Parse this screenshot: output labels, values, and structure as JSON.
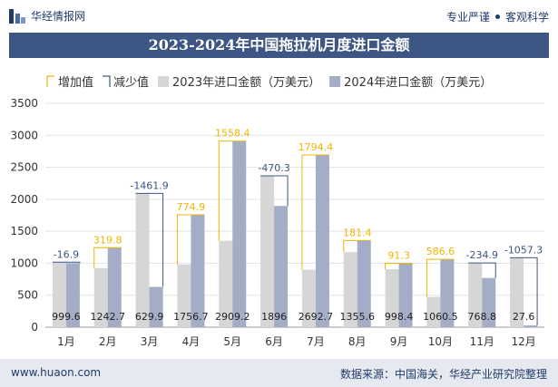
{
  "header": {
    "brand": "华经情报网",
    "slogan_left": "专业严谨",
    "slogan_right": "客观科学"
  },
  "footer": {
    "url": "www.huaon.com",
    "source": "数据来源：中国海关，华经产业研究院整理"
  },
  "chart_data": {
    "type": "bar",
    "title": "2023-2024年中国拖拉机月度进口金额",
    "legend": [
      "增加值",
      "减少值",
      "2023年进口金额（万美元）",
      "2024年进口金额（万美元）"
    ],
    "legend_position": "top",
    "categories": [
      "1月",
      "2月",
      "3月",
      "4月",
      "5月",
      "6月",
      "7月",
      "8月",
      "9月",
      "10月",
      "11月",
      "12月"
    ],
    "series": [
      {
        "name": "2023年进口金额（万美元）",
        "values": [
          1016.5,
          922.9,
          2091.8,
          981.8,
          1350.8,
          2366.3,
          898.3,
          1174.2,
          907.1,
          473.9,
          1003.7,
          1084.9
        ]
      },
      {
        "name": "2024年进口金额（万美元）",
        "values": [
          999.6,
          1242.7,
          629.9,
          1756.7,
          2909.2,
          1896,
          2692.7,
          1355.6,
          998.4,
          1060.5,
          768.8,
          27.6
        ]
      }
    ],
    "change": [
      "-16.9",
      "319.8",
      "-1461.9",
      "774.9",
      "1558.4",
      "-470.3",
      "1794.4",
      "181.4",
      "91.3",
      "586.6",
      "-234.9",
      "-1057.3"
    ],
    "ylim": [
      0,
      3500
    ],
    "yticks": [
      0,
      500,
      1000,
      1500,
      2000,
      2500,
      3000,
      3500
    ],
    "grid": true,
    "colors": {
      "increase": "#f0b400",
      "decrease": "#3d5683",
      "bar_2023": "#d6d6d6",
      "bar_2024": "#a3adc6"
    }
  }
}
